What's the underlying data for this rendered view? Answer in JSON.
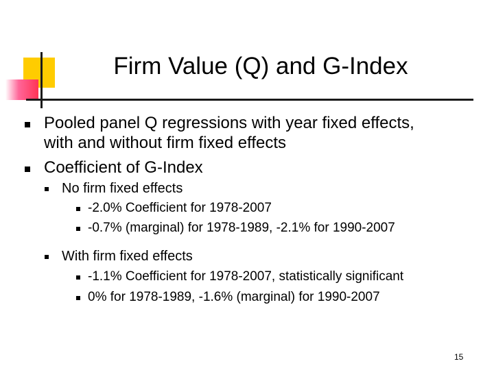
{
  "slide": {
    "title": "Firm Value (Q) and G-Index",
    "page_number": "15",
    "accent_colors": {
      "yellow": "#ffcc00",
      "red": "#ff3355",
      "line": "#1a1a1a"
    },
    "bullets": [
      {
        "level": 1,
        "text_line1": "Pooled panel Q regressions with year fixed effects,",
        "text_line2": "with and without firm fixed effects"
      },
      {
        "level": 1,
        "text": "Coefficient of G-Index"
      },
      {
        "level": 2,
        "text": "No firm fixed effects"
      },
      {
        "level": 3,
        "text": "-2.0% Coefficient for 1978-2007"
      },
      {
        "level": 3,
        "text": "-0.7% (marginal) for 1978-1989, -2.1% for 1990-2007"
      },
      {
        "level": 2,
        "text": "With firm fixed effects"
      },
      {
        "level": 3,
        "text": "-1.1% Coefficient for 1978-2007, statistically significant"
      },
      {
        "level": 3,
        "text": "0% for 1978-1989, -1.6% (marginal) for 1990-2007"
      }
    ]
  }
}
